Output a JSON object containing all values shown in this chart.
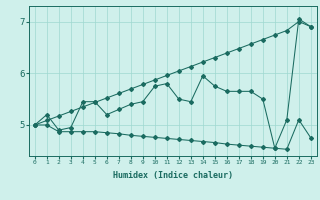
{
  "x": [
    0,
    1,
    2,
    3,
    4,
    5,
    6,
    7,
    8,
    9,
    10,
    11,
    12,
    13,
    14,
    15,
    16,
    17,
    18,
    19,
    20,
    21,
    22,
    23
  ],
  "line_top": [
    5.0,
    5.087,
    5.174,
    5.261,
    5.348,
    5.435,
    5.522,
    5.609,
    5.696,
    5.783,
    5.87,
    5.957,
    6.044,
    6.13,
    6.217,
    6.304,
    6.391,
    6.478,
    6.565,
    6.652,
    6.739,
    6.826,
    7.0,
    6.9
  ],
  "line_mid": [
    5.0,
    5.2,
    4.9,
    4.95,
    5.45,
    5.45,
    5.2,
    5.3,
    5.4,
    5.45,
    5.75,
    5.8,
    5.5,
    5.45,
    5.95,
    5.75,
    5.65,
    5.65,
    5.65,
    5.5,
    4.55,
    5.1,
    7.05,
    6.9
  ],
  "line_bot": [
    5.0,
    5.0,
    4.87,
    4.87,
    4.87,
    4.87,
    4.85,
    4.83,
    4.8,
    4.78,
    4.76,
    4.74,
    4.72,
    4.7,
    4.68,
    4.66,
    4.63,
    4.61,
    4.59,
    4.57,
    4.55,
    4.53,
    5.1,
    4.75
  ],
  "bg_color": "#cff0eb",
  "grid_color": "#9fd8d0",
  "line_color": "#1a6b60",
  "ylabel_vals": [
    5,
    6,
    7
  ],
  "xlim": [
    -0.5,
    23.5
  ],
  "ylim": [
    4.4,
    7.3
  ],
  "xlabel": "Humidex (Indice chaleur)"
}
